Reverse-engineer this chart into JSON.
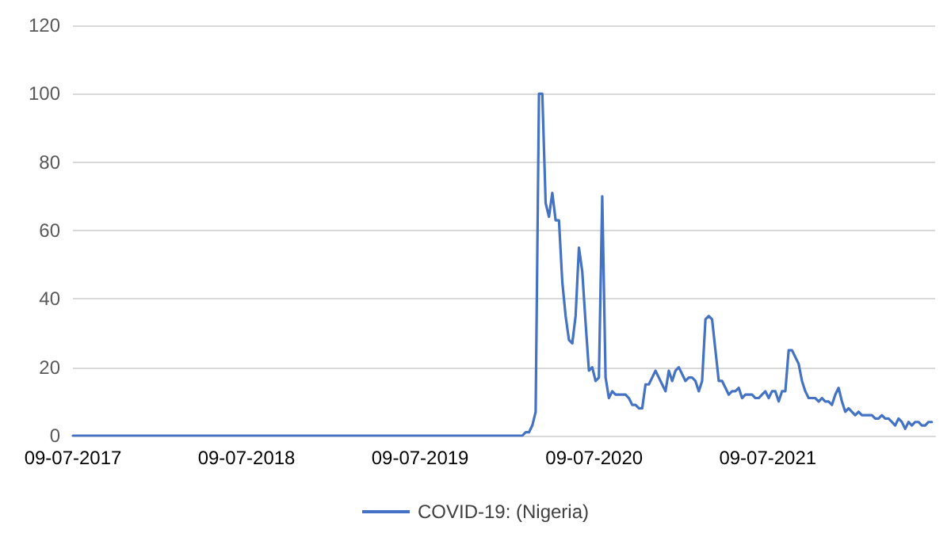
{
  "chart_data": {
    "type": "line",
    "x": [
      "2017-07-09",
      "2020-01-26",
      "2020-02-02",
      "2020-02-09",
      "2020-02-16",
      "2020-02-23",
      "2020-03-01",
      "2020-03-08",
      "2020-03-15",
      "2020-03-22",
      "2020-03-29",
      "2020-04-05",
      "2020-04-12",
      "2020-04-19",
      "2020-04-26",
      "2020-05-03",
      "2020-05-10",
      "2020-05-17",
      "2020-05-24",
      "2020-05-31",
      "2020-06-07",
      "2020-06-14",
      "2020-06-21",
      "2020-06-28",
      "2020-07-05",
      "2020-07-12",
      "2020-07-19",
      "2020-07-26",
      "2020-08-02",
      "2020-08-09",
      "2020-08-16",
      "2020-08-23",
      "2020-08-30",
      "2020-09-06",
      "2020-09-13",
      "2020-09-20",
      "2020-09-27",
      "2020-10-04",
      "2020-10-11",
      "2020-10-18",
      "2020-10-25",
      "2020-11-01",
      "2020-11-08",
      "2020-11-15",
      "2020-11-22",
      "2020-11-29",
      "2020-12-06",
      "2020-12-13",
      "2020-12-20",
      "2020-12-27",
      "2021-01-03",
      "2021-01-10",
      "2021-01-17",
      "2021-01-24",
      "2021-01-31",
      "2021-02-07",
      "2021-02-14",
      "2021-02-21",
      "2021-02-28",
      "2021-03-07",
      "2021-03-14",
      "2021-03-21",
      "2021-03-28",
      "2021-04-04",
      "2021-04-11",
      "2021-04-18",
      "2021-04-25",
      "2021-05-02",
      "2021-05-09",
      "2021-05-16",
      "2021-05-23",
      "2021-05-30",
      "2021-06-06",
      "2021-06-13",
      "2021-06-20",
      "2021-06-27",
      "2021-07-04",
      "2021-07-11",
      "2021-07-18",
      "2021-07-25",
      "2021-08-01",
      "2021-08-08",
      "2021-08-15",
      "2021-08-22",
      "2021-08-29",
      "2021-09-05",
      "2021-09-12",
      "2021-09-19",
      "2021-09-26",
      "2021-10-03",
      "2021-10-10",
      "2021-10-17",
      "2021-10-24",
      "2021-10-31",
      "2021-11-07",
      "2021-11-14",
      "2021-11-21",
      "2021-11-28",
      "2021-12-05",
      "2021-12-12",
      "2021-12-19",
      "2021-12-26",
      "2022-01-02",
      "2022-01-09",
      "2022-01-16",
      "2022-01-23",
      "2022-01-30",
      "2022-02-06",
      "2022-02-13",
      "2022-02-20",
      "2022-02-27",
      "2022-03-06",
      "2022-03-13",
      "2022-03-20",
      "2022-03-27",
      "2022-04-03",
      "2022-04-10",
      "2022-04-17",
      "2022-04-24",
      "2022-05-01",
      "2022-05-08",
      "2022-05-15",
      "2022-05-22",
      "2022-05-29",
      "2022-06-05",
      "2022-06-12",
      "2022-06-19"
    ],
    "series": [
      {
        "name": "COVID-19: (Nigeria)",
        "color": "#4472c4",
        "values": [
          0,
          0,
          0,
          0,
          1,
          1,
          3,
          7,
          100,
          100,
          68,
          64,
          71,
          63,
          63,
          45,
          35,
          28,
          27,
          35,
          55,
          48,
          33,
          19,
          20,
          16,
          17,
          70,
          17,
          11,
          13,
          12,
          12,
          12,
          12,
          11,
          9,
          9,
          8,
          8,
          15,
          15,
          17,
          19,
          17,
          15,
          13,
          19,
          16,
          19,
          20,
          18,
          16,
          17,
          17,
          16,
          13,
          16,
          34,
          35,
          34,
          25,
          16,
          16,
          14,
          12,
          13,
          13,
          14,
          11,
          12,
          12,
          12,
          11,
          11,
          12,
          13,
          11,
          13,
          13,
          10,
          13,
          13,
          25,
          25,
          23,
          21,
          16,
          13,
          11,
          11,
          11,
          10,
          11,
          10,
          10,
          9,
          12,
          14,
          10,
          7,
          8,
          7,
          6,
          7,
          6,
          6,
          6,
          6,
          5,
          5,
          6,
          5,
          5,
          4,
          3,
          5,
          4,
          2,
          4,
          3,
          4,
          4,
          3,
          3,
          4,
          4
        ]
      }
    ],
    "xlim": [
      "2017-07-09",
      "2022-06-26"
    ],
    "xticks": [
      {
        "value": "2017-07-09",
        "label": "09-07-2017"
      },
      {
        "value": "2018-07-09",
        "label": "09-07-2018"
      },
      {
        "value": "2019-07-09",
        "label": "09-07-2019"
      },
      {
        "value": "2020-07-09",
        "label": "09-07-2020"
      },
      {
        "value": "2021-07-09",
        "label": "09-07-2021"
      }
    ],
    "ylim": [
      0,
      120
    ],
    "yticks": [
      0,
      20,
      40,
      60,
      80,
      100,
      120
    ],
    "grid": "y",
    "legend": "bottom",
    "marker": "none",
    "line_style": "solid"
  }
}
